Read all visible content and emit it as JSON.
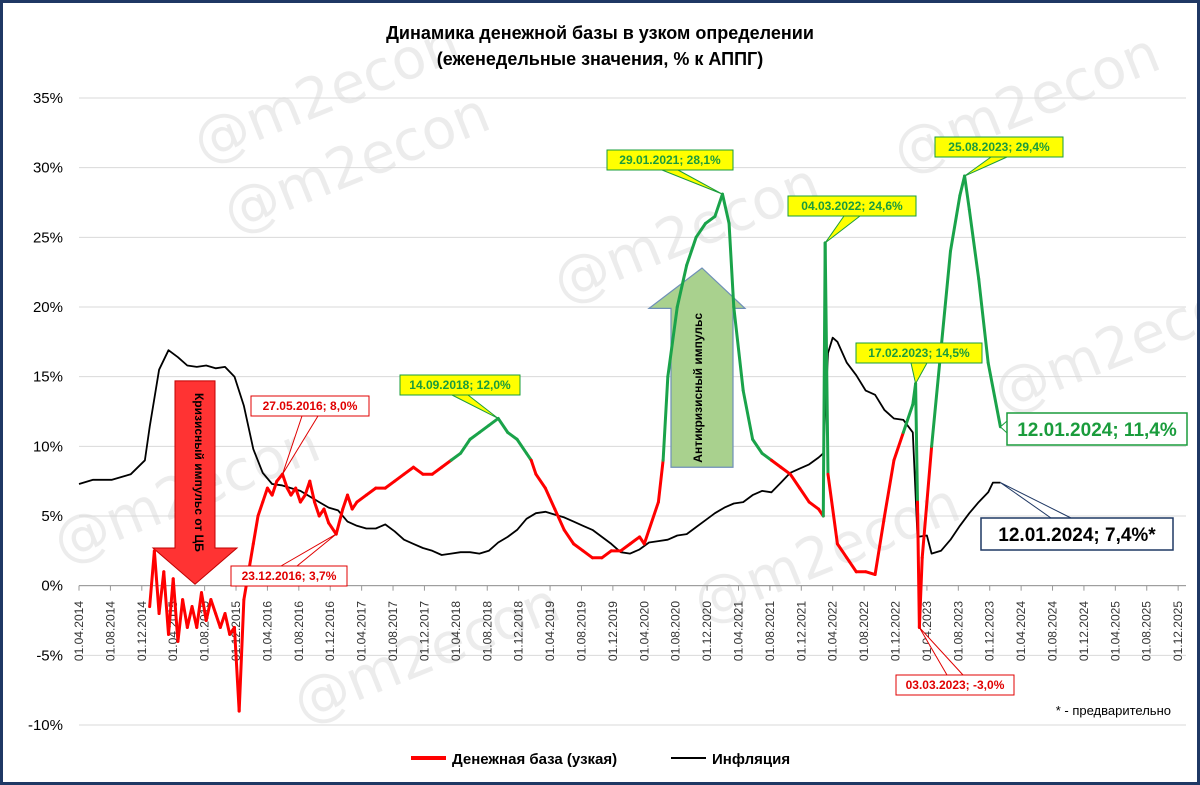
{
  "chart_data": {
    "type": "line",
    "title": "Динамика денежной базы в узком определении",
    "subtitle": "(еженедельные значения, % к АППГ)",
    "xlabel": "",
    "ylabel": "",
    "ylim": [
      -10,
      35
    ],
    "yticks": [
      "35%",
      "30%",
      "25%",
      "20%",
      "15%",
      "10%",
      "5%",
      "0%",
      "-5%",
      "-10%"
    ],
    "xticks": [
      "01.04.2014",
      "01.08.2014",
      "01.12.2014",
      "01.04.2015",
      "01.08.2015",
      "01.12.2015",
      "01.04.2016",
      "01.08.2016",
      "01.12.2016",
      "01.04.2017",
      "01.08.2017",
      "01.12.2017",
      "01.04.2018",
      "01.08.2018",
      "01.12.2018",
      "01.04.2019",
      "01.08.2019",
      "01.12.2019",
      "01.04.2020",
      "01.08.2020",
      "01.12.2020",
      "01.04.2021",
      "01.08.2021",
      "01.12.2021",
      "01.04.2022",
      "01.08.2022",
      "01.12.2022",
      "01.04.2023",
      "01.08.2023",
      "01.12.2023",
      "01.04.2024",
      "01.08.2024",
      "01.12.2024",
      "01.04.2025",
      "01.08.2025",
      "01.12.2025"
    ],
    "grid": true,
    "legend_position": "bottom",
    "series": [
      {
        "name": "Денежная база (узкая)",
        "color": "#ff0000",
        "points": [
          [
            2015.0,
            -1.5
          ],
          [
            2015.05,
            2.5
          ],
          [
            2015.1,
            -2.0
          ],
          [
            2015.15,
            1.0
          ],
          [
            2015.2,
            -3.5
          ],
          [
            2015.25,
            0.5
          ],
          [
            2015.3,
            -4.0
          ],
          [
            2015.35,
            -1.0
          ],
          [
            2015.4,
            -3.0
          ],
          [
            2015.45,
            -1.5
          ],
          [
            2015.5,
            -3.0
          ],
          [
            2015.55,
            -0.5
          ],
          [
            2015.6,
            -2.5
          ],
          [
            2015.65,
            -1.0
          ],
          [
            2015.7,
            -2.0
          ],
          [
            2015.75,
            -3.0
          ],
          [
            2015.8,
            -2.0
          ],
          [
            2015.85,
            -3.5
          ],
          [
            2015.9,
            -3.0
          ],
          [
            2015.95,
            -9.0
          ],
          [
            2016.0,
            -1.0
          ],
          [
            2016.05,
            1.0
          ],
          [
            2016.1,
            3.0
          ],
          [
            2016.15,
            5.0
          ],
          [
            2016.2,
            6.0
          ],
          [
            2016.25,
            7.0
          ],
          [
            2016.3,
            6.5
          ],
          [
            2016.35,
            7.5
          ],
          [
            2016.41,
            8.0
          ],
          [
            2016.46,
            7.0
          ],
          [
            2016.5,
            6.5
          ],
          [
            2016.55,
            7.0
          ],
          [
            2016.6,
            6.0
          ],
          [
            2016.65,
            6.5
          ],
          [
            2016.7,
            7.5
          ],
          [
            2016.75,
            6.0
          ],
          [
            2016.8,
            5.0
          ],
          [
            2016.85,
            5.5
          ],
          [
            2016.9,
            4.5
          ],
          [
            2016.98,
            3.7
          ],
          [
            2017.05,
            5.5
          ],
          [
            2017.1,
            6.5
          ],
          [
            2017.15,
            5.5
          ],
          [
            2017.2,
            6.0
          ],
          [
            2017.3,
            6.5
          ],
          [
            2017.4,
            7.0
          ],
          [
            2017.5,
            7.0
          ],
          [
            2017.6,
            7.5
          ],
          [
            2017.7,
            8.0
          ],
          [
            2017.8,
            8.5
          ],
          [
            2017.9,
            8.0
          ],
          [
            2018.0,
            8.0
          ],
          [
            2018.1,
            8.5
          ],
          [
            2018.2,
            9.0
          ],
          [
            2018.3,
            9.5
          ],
          [
            2018.4,
            10.5
          ],
          [
            2018.5,
            11.0
          ],
          [
            2018.6,
            11.5
          ],
          [
            2018.7,
            12.0
          ],
          [
            2018.8,
            11.0
          ],
          [
            2018.9,
            10.5
          ],
          [
            2019.0,
            9.5
          ],
          [
            2019.05,
            9.0
          ],
          [
            2019.1,
            8.0
          ],
          [
            2019.2,
            7.0
          ],
          [
            2019.3,
            5.5
          ],
          [
            2019.4,
            4.0
          ],
          [
            2019.5,
            3.0
          ],
          [
            2019.6,
            2.5
          ],
          [
            2019.7,
            2.0
          ],
          [
            2019.8,
            2.0
          ],
          [
            2019.9,
            2.5
          ],
          [
            2020.0,
            2.5
          ],
          [
            2020.1,
            3.0
          ],
          [
            2020.2,
            3.5
          ],
          [
            2020.25,
            3.0
          ],
          [
            2020.3,
            4.0
          ],
          [
            2020.4,
            6.0
          ],
          [
            2020.45,
            9.0
          ],
          [
            2020.5,
            15.0
          ],
          [
            2020.6,
            20.0
          ],
          [
            2020.7,
            23.0
          ],
          [
            2020.8,
            25.0
          ],
          [
            2020.9,
            26.0
          ],
          [
            2021.0,
            26.5
          ],
          [
            2021.08,
            28.1
          ],
          [
            2021.15,
            26.0
          ],
          [
            2021.2,
            20.0
          ],
          [
            2021.3,
            14.0
          ],
          [
            2021.4,
            10.5
          ],
          [
            2021.5,
            9.5
          ],
          [
            2021.6,
            9.0
          ],
          [
            2021.7,
            8.5
          ],
          [
            2021.8,
            8.0
          ],
          [
            2021.9,
            7.0
          ],
          [
            2022.0,
            6.0
          ],
          [
            2022.1,
            5.5
          ],
          [
            2022.15,
            5.0
          ],
          [
            2022.17,
            24.6
          ],
          [
            2022.2,
            8.0
          ],
          [
            2022.3,
            3.0
          ],
          [
            2022.4,
            2.0
          ],
          [
            2022.5,
            1.0
          ],
          [
            2022.6,
            1.0
          ],
          [
            2022.7,
            0.8
          ],
          [
            2022.8,
            5.0
          ],
          [
            2022.9,
            9.0
          ],
          [
            2023.0,
            11.0
          ],
          [
            2023.1,
            13.0
          ],
          [
            2023.13,
            14.5
          ],
          [
            2023.15,
            6.0
          ],
          [
            2023.17,
            -3.0
          ],
          [
            2023.2,
            2.0
          ],
          [
            2023.3,
            10.0
          ],
          [
            2023.4,
            17.0
          ],
          [
            2023.5,
            24.0
          ],
          [
            2023.6,
            28.0
          ],
          [
            2023.65,
            29.4
          ],
          [
            2023.7,
            27.0
          ],
          [
            2023.8,
            22.0
          ],
          [
            2023.9,
            16.0
          ],
          [
            2024.03,
            11.4
          ]
        ]
      },
      {
        "name": "Инфляция",
        "color": "#000000",
        "points": [
          [
            2014.25,
            7.3
          ],
          [
            2014.4,
            7.6
          ],
          [
            2014.6,
            7.6
          ],
          [
            2014.8,
            8.0
          ],
          [
            2014.95,
            9.0
          ],
          [
            2015.0,
            11.4
          ],
          [
            2015.1,
            15.5
          ],
          [
            2015.2,
            16.9
          ],
          [
            2015.3,
            16.4
          ],
          [
            2015.4,
            15.8
          ],
          [
            2015.5,
            15.7
          ],
          [
            2015.6,
            15.8
          ],
          [
            2015.7,
            15.6
          ],
          [
            2015.8,
            15.7
          ],
          [
            2015.9,
            15.0
          ],
          [
            2016.0,
            12.9
          ],
          [
            2016.1,
            9.8
          ],
          [
            2016.2,
            8.1
          ],
          [
            2016.3,
            7.3
          ],
          [
            2016.4,
            7.2
          ],
          [
            2016.5,
            7.0
          ],
          [
            2016.6,
            6.8
          ],
          [
            2016.7,
            6.4
          ],
          [
            2016.8,
            6.0
          ],
          [
            2016.9,
            5.6
          ],
          [
            2017.0,
            5.4
          ],
          [
            2017.1,
            4.6
          ],
          [
            2017.2,
            4.3
          ],
          [
            2017.3,
            4.1
          ],
          [
            2017.4,
            4.1
          ],
          [
            2017.5,
            4.4
          ],
          [
            2017.6,
            3.9
          ],
          [
            2017.7,
            3.3
          ],
          [
            2017.8,
            3.0
          ],
          [
            2017.9,
            2.7
          ],
          [
            2018.0,
            2.5
          ],
          [
            2018.1,
            2.2
          ],
          [
            2018.2,
            2.3
          ],
          [
            2018.3,
            2.4
          ],
          [
            2018.4,
            2.4
          ],
          [
            2018.5,
            2.3
          ],
          [
            2018.6,
            2.5
          ],
          [
            2018.7,
            3.1
          ],
          [
            2018.8,
            3.5
          ],
          [
            2018.9,
            4.0
          ],
          [
            2019.0,
            4.8
          ],
          [
            2019.1,
            5.2
          ],
          [
            2019.2,
            5.3
          ],
          [
            2019.3,
            5.1
          ],
          [
            2019.4,
            4.9
          ],
          [
            2019.5,
            4.6
          ],
          [
            2019.6,
            4.3
          ],
          [
            2019.7,
            4.0
          ],
          [
            2019.8,
            3.5
          ],
          [
            2019.9,
            3.0
          ],
          [
            2020.0,
            2.4
          ],
          [
            2020.1,
            2.3
          ],
          [
            2020.2,
            2.6
          ],
          [
            2020.3,
            3.1
          ],
          [
            2020.4,
            3.2
          ],
          [
            2020.5,
            3.3
          ],
          [
            2020.6,
            3.6
          ],
          [
            2020.7,
            3.7
          ],
          [
            2020.8,
            4.2
          ],
          [
            2020.9,
            4.7
          ],
          [
            2021.0,
            5.2
          ],
          [
            2021.1,
            5.6
          ],
          [
            2021.2,
            5.9
          ],
          [
            2021.3,
            6.0
          ],
          [
            2021.4,
            6.5
          ],
          [
            2021.5,
            6.8
          ],
          [
            2021.6,
            6.7
          ],
          [
            2021.7,
            7.4
          ],
          [
            2021.8,
            8.1
          ],
          [
            2021.9,
            8.4
          ],
          [
            2022.0,
            8.7
          ],
          [
            2022.1,
            9.2
          ],
          [
            2022.15,
            9.5
          ],
          [
            2022.2,
            16.7
          ],
          [
            2022.25,
            17.8
          ],
          [
            2022.3,
            17.5
          ],
          [
            2022.4,
            16.0
          ],
          [
            2022.5,
            15.1
          ],
          [
            2022.6,
            14.0
          ],
          [
            2022.7,
            13.7
          ],
          [
            2022.8,
            12.6
          ],
          [
            2022.9,
            12.0
          ],
          [
            2023.0,
            11.9
          ],
          [
            2023.1,
            11.0
          ],
          [
            2023.15,
            3.5
          ],
          [
            2023.25,
            3.6
          ],
          [
            2023.3,
            2.3
          ],
          [
            2023.4,
            2.5
          ],
          [
            2023.5,
            3.3
          ],
          [
            2023.6,
            4.3
          ],
          [
            2023.7,
            5.2
          ],
          [
            2023.8,
            6.0
          ],
          [
            2023.9,
            6.7
          ],
          [
            2023.95,
            7.4
          ],
          [
            2024.03,
            7.4
          ]
        ]
      }
    ],
    "annotations": [
      {
        "label": "27.05.2016; 8,0%",
        "x": 2016.41,
        "y": 8.0,
        "color": "#e00000",
        "box": "#ffffff",
        "border": "#e00000"
      },
      {
        "label": "23.12.2016; 3,7%",
        "x": 2016.98,
        "y": 3.7,
        "color": "#e00000",
        "box": "#ffffff",
        "border": "#e00000"
      },
      {
        "label": "14.09.2018; 12,0%",
        "x": 2018.7,
        "y": 12.0,
        "color": "#1a9c3c",
        "box": "#ffff00",
        "border": "#1a9c3c"
      },
      {
        "label": "29.01.2021; 28,1%",
        "x": 2021.08,
        "y": 28.1,
        "color": "#1a9c3c",
        "box": "#ffff00",
        "border": "#1a9c3c"
      },
      {
        "label": "04.03.2022; 24,6%",
        "x": 2022.17,
        "y": 24.6,
        "color": "#1a9c3c",
        "box": "#ffff00",
        "border": "#1a9c3c"
      },
      {
        "label": "17.02.2023; 14,5%",
        "x": 2023.13,
        "y": 14.5,
        "color": "#1a9c3c",
        "box": "#ffff00",
        "border": "#1a9c3c"
      },
      {
        "label": "25.08.2023; 29,4%",
        "x": 2023.65,
        "y": 29.4,
        "color": "#1a9c3c",
        "box": "#ffff00",
        "border": "#1a9c3c"
      },
      {
        "label": "03.03.2023; -3,0%",
        "x": 2023.17,
        "y": -3.0,
        "color": "#e00000",
        "box": "#ffffff",
        "border": "#e00000"
      }
    ],
    "callouts": [
      {
        "label": "12.01.2024; 11,4%",
        "x": 2024.03,
        "y": 11.4,
        "color": "#1a9c3c",
        "border": "#1a9c3c"
      },
      {
        "label": "12.01.2024; 7,4%*",
        "x": 2024.03,
        "y": 7.4,
        "color": "#000000",
        "border": "#1f3864"
      }
    ],
    "arrows": [
      {
        "label": "Кризисный импульс от ЦБ",
        "direction": "down",
        "color": "#ff3333"
      },
      {
        "label": "Антикризисный импульс",
        "direction": "up",
        "color": "#a9d18e"
      }
    ],
    "footnote": "* - предварительно",
    "watermark": "@m2econ"
  }
}
